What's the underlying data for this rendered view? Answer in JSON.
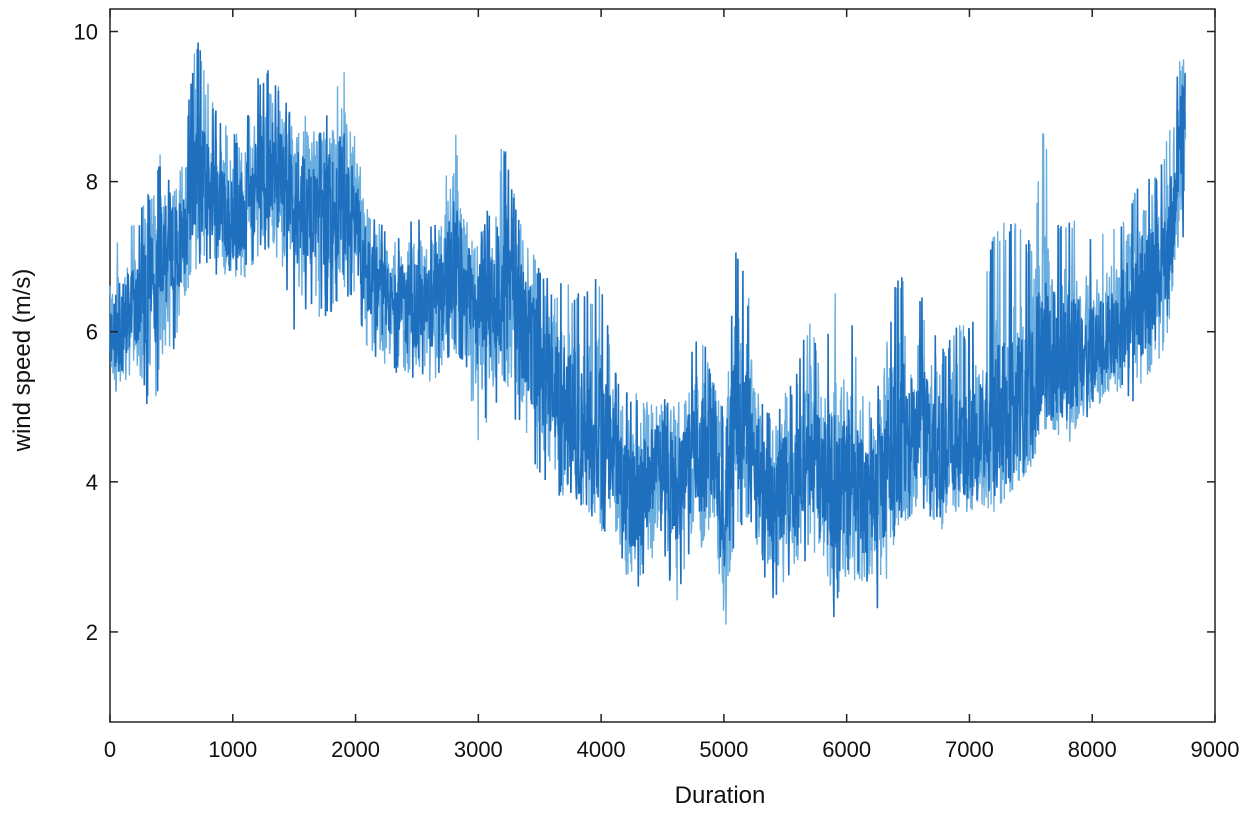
{
  "chart_data": {
    "type": "line",
    "title": "",
    "xlabel": "Duration",
    "ylabel": "wind speed (m/s)",
    "xlim": [
      0,
      9000
    ],
    "ylim": [
      0.8,
      10.3
    ],
    "xticks": [
      0,
      1000,
      2000,
      3000,
      4000,
      5000,
      6000,
      7000,
      8000,
      9000
    ],
    "yticks": [
      2,
      4,
      6,
      8,
      10
    ],
    "grid": false,
    "legend": "none",
    "series_color": "#1f6fbf",
    "series_color_light": "#6aaee0",
    "series": [
      {
        "x": [
          0,
          100,
          200,
          300,
          400,
          500,
          600,
          700,
          800,
          900,
          1000,
          1100,
          1200,
          1300,
          1400,
          1500,
          1600,
          1700,
          1800,
          1900,
          2000,
          2100,
          2200,
          2300,
          2400,
          2500,
          2600,
          2700,
          2800,
          2900,
          3000,
          3100,
          3200,
          3300,
          3400,
          3500,
          3600,
          3700,
          3800,
          3900,
          4000,
          4100,
          4200,
          4300,
          4400,
          4500,
          4600,
          4700,
          4800,
          4900,
          5000,
          5100,
          5200,
          5300,
          5400,
          5500,
          5600,
          5700,
          5800,
          5900,
          6000,
          6100,
          6200,
          6300,
          6400,
          6500,
          6600,
          6700,
          6800,
          6900,
          7000,
          7100,
          7200,
          7300,
          7400,
          7500,
          7600,
          7700,
          7800,
          7900,
          8000,
          8100,
          8200,
          8300,
          8400,
          8500,
          8600,
          8700,
          8760
        ],
        "mean": [
          5.9,
          6.1,
          6.3,
          6.5,
          6.8,
          7.0,
          7.3,
          8.1,
          7.9,
          7.6,
          7.5,
          7.6,
          7.9,
          8.2,
          8.0,
          7.6,
          7.8,
          7.5,
          7.6,
          7.9,
          7.4,
          6.8,
          6.5,
          6.3,
          6.3,
          6.4,
          6.3,
          6.5,
          6.9,
          6.6,
          6.2,
          6.4,
          6.7,
          6.4,
          5.9,
          5.6,
          5.3,
          5.0,
          4.8,
          4.7,
          4.6,
          4.4,
          3.9,
          3.7,
          4.1,
          4.3,
          3.9,
          4.2,
          4.3,
          4.4,
          3.6,
          4.8,
          4.7,
          4.1,
          3.7,
          4.0,
          3.9,
          4.4,
          4.2,
          3.8,
          4.1,
          3.8,
          3.7,
          4.1,
          4.6,
          4.7,
          4.8,
          4.5,
          4.4,
          4.6,
          4.4,
          4.7,
          4.8,
          4.9,
          5.0,
          5.3,
          5.8,
          5.7,
          5.6,
          5.8,
          5.7,
          5.9,
          6.1,
          6.3,
          6.5,
          6.6,
          6.8,
          8.2,
          9.0
        ],
        "max": [
          6.9,
          7.6,
          7.5,
          7.8,
          8.4,
          8.0,
          8.4,
          10.0,
          9.3,
          8.9,
          8.6,
          8.9,
          9.4,
          9.6,
          9.3,
          8.8,
          9.1,
          8.7,
          9.0,
          9.6,
          8.6,
          7.8,
          7.5,
          7.3,
          7.4,
          7.7,
          7.4,
          7.7,
          8.9,
          7.5,
          7.2,
          7.8,
          8.6,
          7.8,
          7.2,
          6.9,
          6.6,
          6.9,
          6.5,
          6.6,
          6.8,
          5.6,
          5.3,
          5.2,
          5.1,
          5.2,
          5.0,
          5.5,
          6.2,
          5.4,
          5.0,
          7.2,
          6.5,
          5.2,
          4.8,
          5.2,
          5.5,
          6.3,
          5.5,
          6.5,
          6.7,
          5.6,
          5.0,
          5.6,
          6.8,
          6.8,
          6.6,
          6.0,
          5.8,
          6.1,
          6.1,
          6.3,
          7.5,
          7.5,
          7.5,
          7.2,
          8.8,
          7.6,
          7.6,
          7.5,
          7.2,
          7.4,
          7.5,
          7.6,
          8.2,
          8.0,
          8.6,
          9.6,
          10.0
        ],
        "min": [
          5.1,
          5.3,
          5.5,
          5.0,
          5.1,
          5.6,
          6.2,
          6.7,
          6.8,
          6.7,
          6.6,
          6.7,
          7.0,
          7.1,
          6.9,
          6.0,
          6.3,
          6.2,
          6.1,
          6.6,
          6.2,
          5.7,
          5.5,
          5.6,
          5.1,
          5.5,
          5.3,
          5.4,
          5.7,
          5.4,
          4.5,
          4.8,
          5.2,
          4.8,
          4.4,
          4.0,
          3.8,
          3.8,
          3.7,
          3.6,
          3.2,
          3.3,
          2.7,
          2.5,
          2.9,
          3.2,
          2.2,
          3.0,
          3.1,
          3.0,
          1.5,
          3.4,
          3.4,
          2.9,
          2.3,
          2.7,
          2.7,
          3.0,
          3.1,
          2.1,
          2.8,
          2.6,
          2.5,
          2.1,
          3.4,
          3.5,
          3.7,
          3.4,
          3.3,
          3.6,
          3.6,
          3.7,
          3.6,
          3.8,
          4.0,
          4.2,
          4.7,
          4.7,
          4.4,
          4.9,
          4.8,
          5.2,
          5.2,
          5.0,
          5.2,
          5.3,
          5.6,
          6.8,
          7.4
        ]
      }
    ]
  }
}
